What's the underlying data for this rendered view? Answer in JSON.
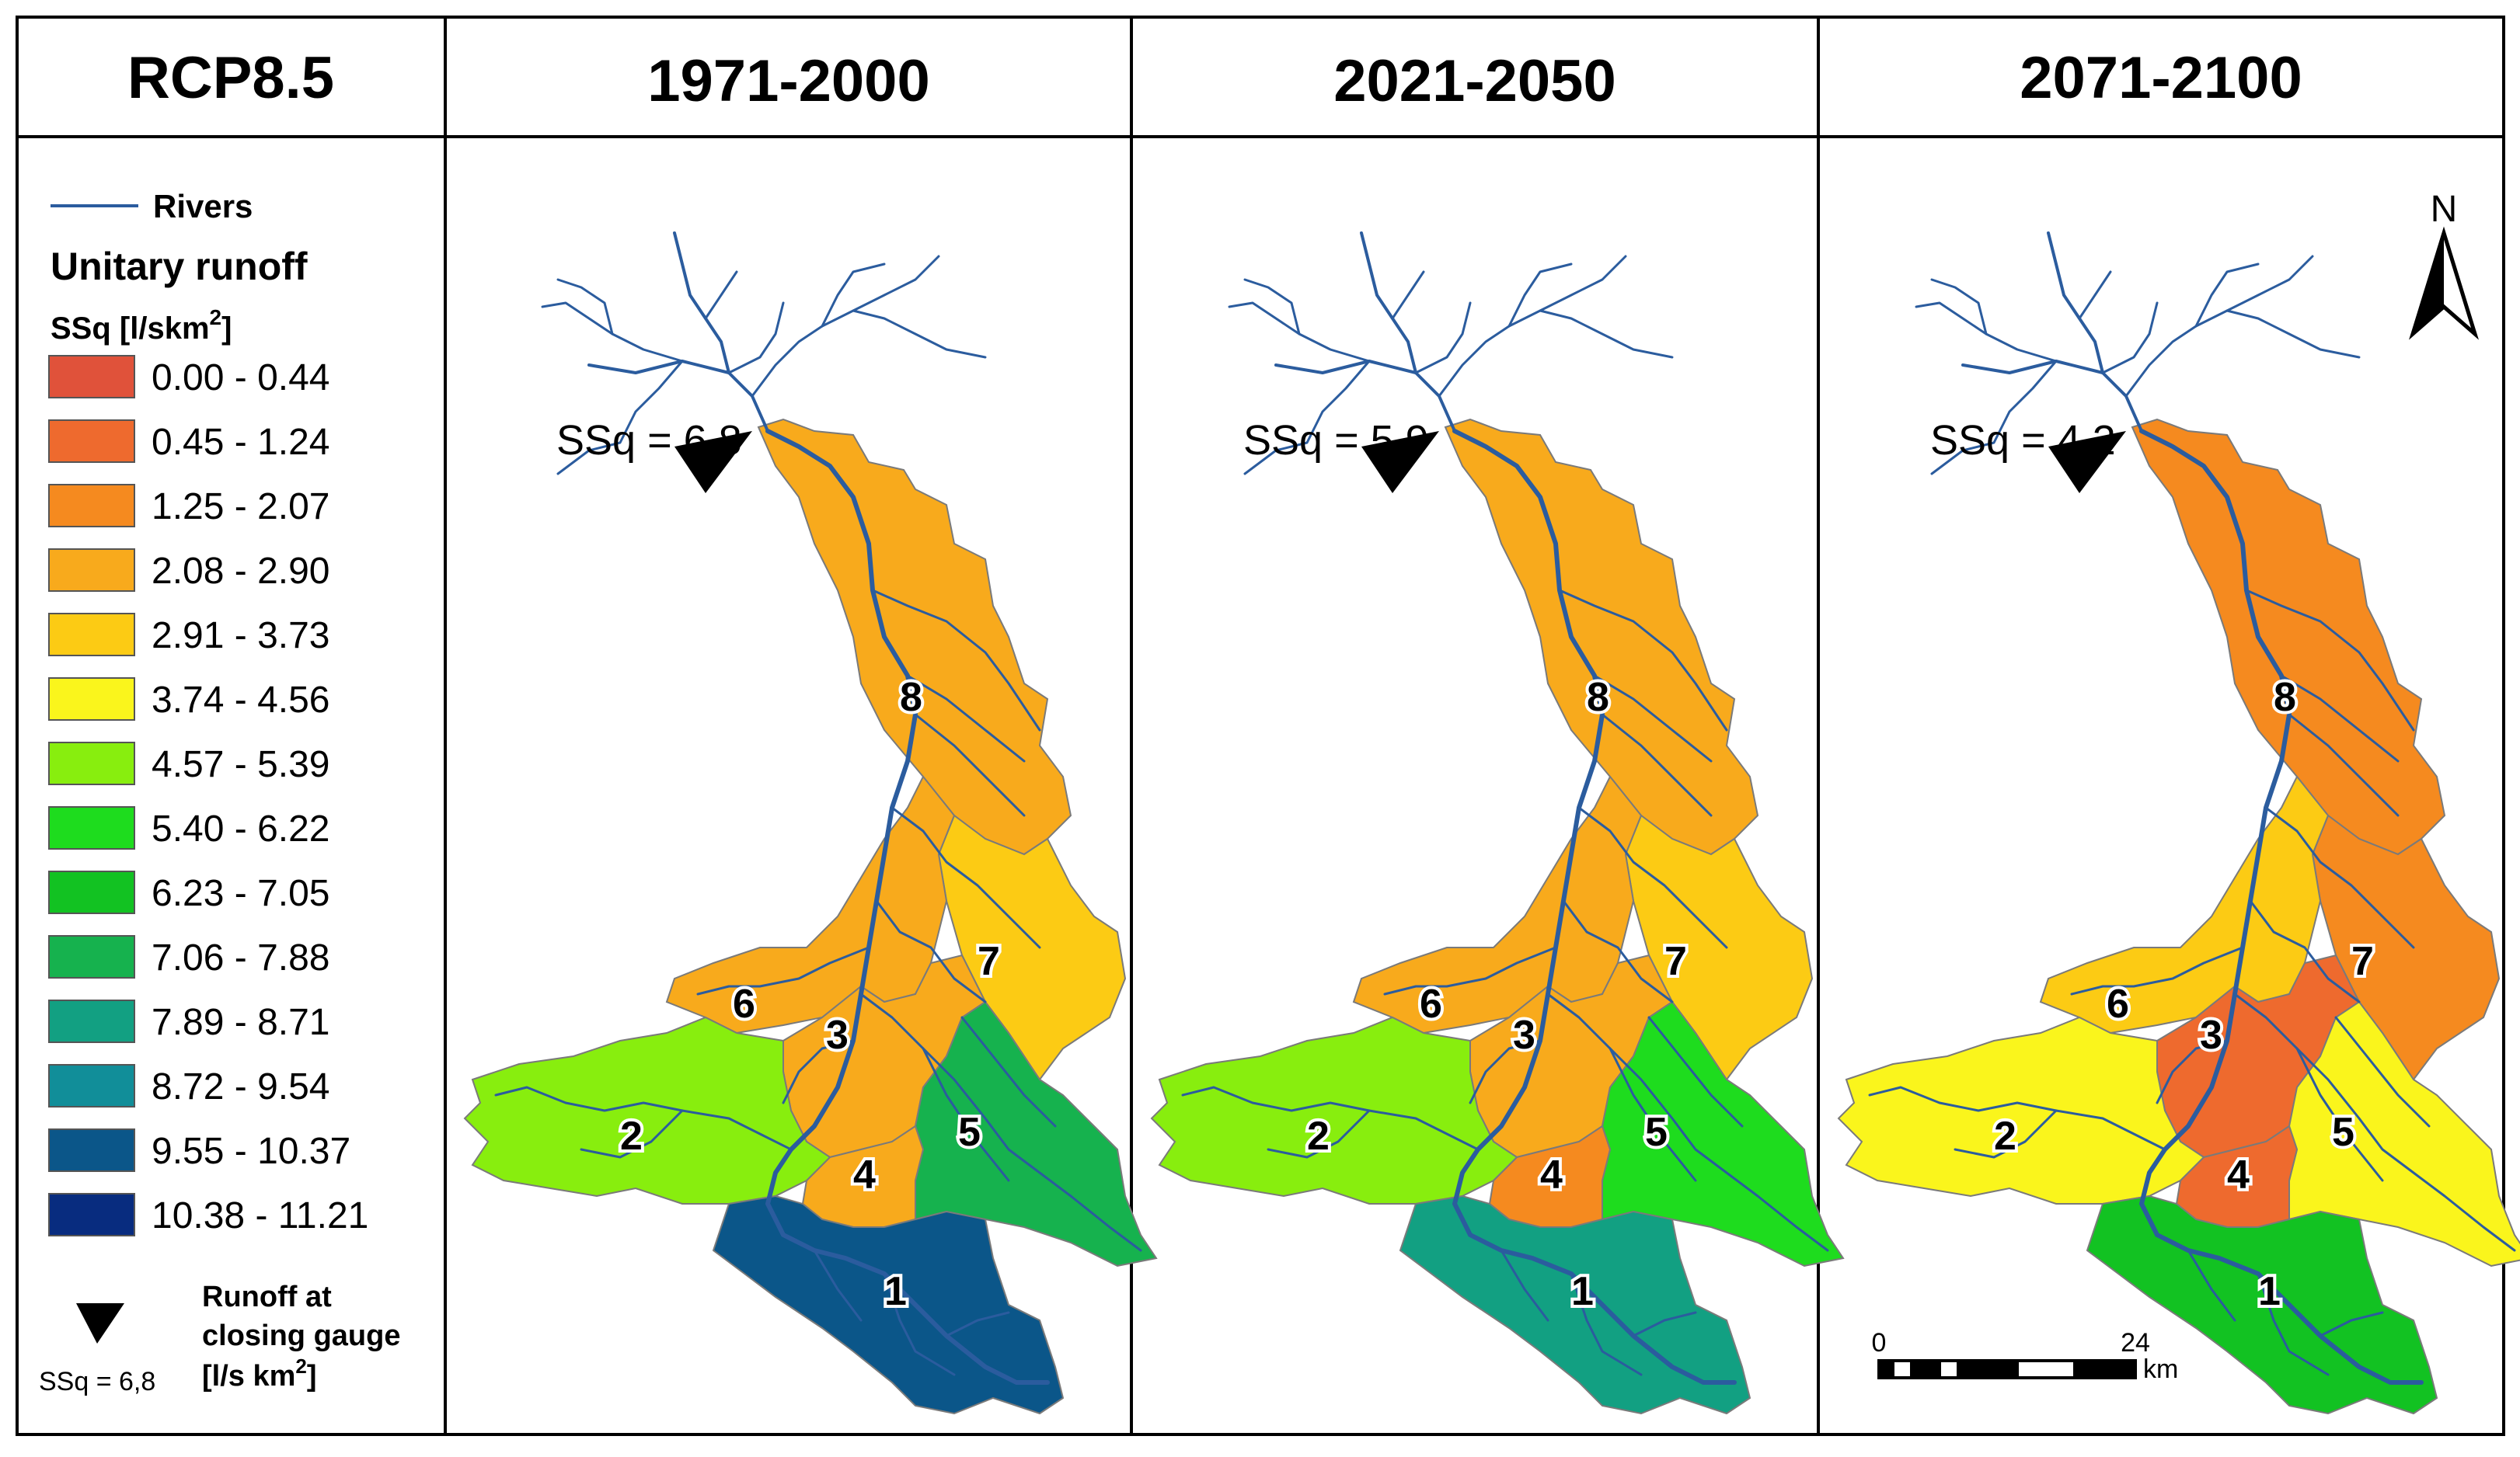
{
  "scenario_label": "RCP8.5",
  "legend": {
    "rivers_label": "Rivers",
    "title": "Unitary runoff",
    "subtitle": "SSq [l/skm",
    "subtitle_sup": "2",
    "subtitle_end": "]",
    "classes": [
      {
        "label": "0.00 - 0.44",
        "color": "#E0523A"
      },
      {
        "label": "0.45 - 1.24",
        "color": "#EE6A2E"
      },
      {
        "label": "1.25 - 2.07",
        "color": "#F58A1F"
      },
      {
        "label": "2.08 - 2.90",
        "color": "#F8AA1C"
      },
      {
        "label": "2.91 - 3.73",
        "color": "#FCCB14"
      },
      {
        "label": "3.74 - 4.56",
        "color": "#FAF51C"
      },
      {
        "label": "4.57 - 5.39",
        "color": "#88EE0E"
      },
      {
        "label": "5.40 - 6.22",
        "color": "#1EDC1E"
      },
      {
        "label": "6.23 - 7.05",
        "color": "#12C222"
      },
      {
        "label": "7.06 - 7.88",
        "color": "#16B24E"
      },
      {
        "label": "7.89 - 8.71",
        "color": "#12A082"
      },
      {
        "label": "8.72 - 9.54",
        "color": "#118E99"
      },
      {
        "label": "9.55 - 10.37",
        "color": "#0B5689"
      },
      {
        "label": "10.38 - 11.21",
        "color": "#082C7F"
      }
    ],
    "gauge_label_1": "Runoff at",
    "gauge_label_2": "closing gauge",
    "gauge_label_3": "[l/s km",
    "gauge_label_sup": "2",
    "gauge_label_end": "]",
    "gauge_example": "SSq = 6,8"
  },
  "panels": [
    {
      "period": "1971-2000",
      "ssq_text": "SSq = 6,8",
      "subbasin_colors": {
        "1": "#0B5689",
        "2": "#88EE0E",
        "3": "#F8AA1C",
        "4": "#F8AA1C",
        "5": "#16B24E",
        "6": "#F8AA1C",
        "7": "#FCCB14",
        "8": "#F8AA1C"
      }
    },
    {
      "period": "2021-2050",
      "ssq_text": "SSq = 5,9",
      "subbasin_colors": {
        "1": "#12A082",
        "2": "#88EE0E",
        "3": "#F8AA1C",
        "4": "#F58A1F",
        "5": "#1EDC1E",
        "6": "#F8AA1C",
        "7": "#FCCB14",
        "8": "#F8AA1C"
      }
    },
    {
      "period": "2071-2100",
      "ssq_text": "SSq = 4,2",
      "subbasin_colors": {
        "1": "#12C222",
        "2": "#FAF51C",
        "3": "#EE6A2E",
        "4": "#EE6A2E",
        "5": "#FAF51C",
        "6": "#FCCB14",
        "7": "#F58A1F",
        "8": "#F58A1F"
      }
    }
  ],
  "subbasin_numbers": [
    "1",
    "2",
    "3",
    "4",
    "5",
    "6",
    "7",
    "8"
  ],
  "north_label": "N",
  "scale_bar": {
    "start": "0",
    "end": "24",
    "unit": "km"
  },
  "river_color": "#2B5C9E"
}
